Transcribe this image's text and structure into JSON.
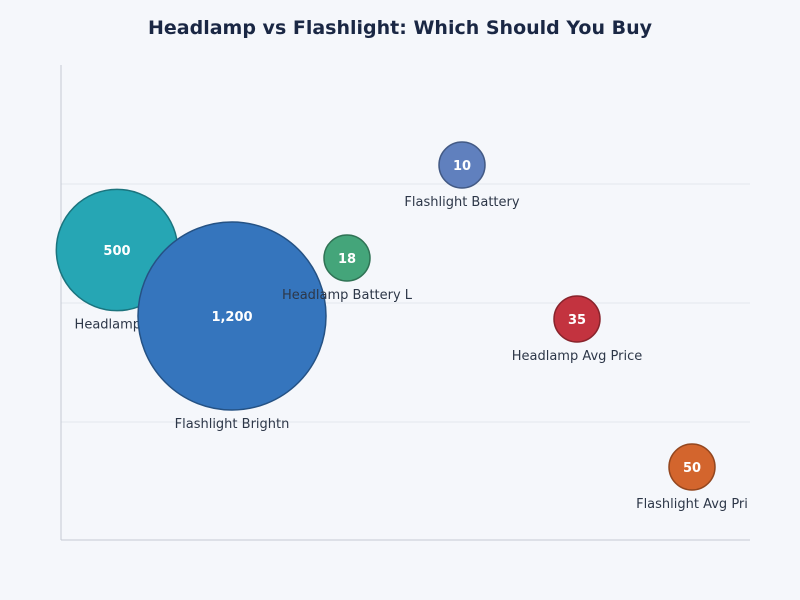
{
  "chart_data": {
    "type": "bubble",
    "title": "Headlamp vs Flashlight: Which Should You Buy",
    "xlabel": "",
    "ylabel": "",
    "grid": true,
    "points": [
      {
        "label": "Headlamp Br",
        "value": 500,
        "display": "500",
        "color": "#26a6b4"
      },
      {
        "label": "Flashlight Brightn",
        "value": 1200,
        "display": "1,200",
        "color": "#3575bd"
      },
      {
        "label": "Headlamp Battery L",
        "value": 18,
        "display": "18",
        "color": "#44a57a"
      },
      {
        "label": "Flashlight Battery",
        "value": 10,
        "display": "10",
        "color": "#6080be"
      },
      {
        "label": "Headlamp Avg Price",
        "value": 35,
        "display": "35",
        "color": "#c3333f"
      },
      {
        "label": "Flashlight Avg Pri",
        "value": 50,
        "display": "50",
        "color": "#d3652d"
      }
    ]
  }
}
